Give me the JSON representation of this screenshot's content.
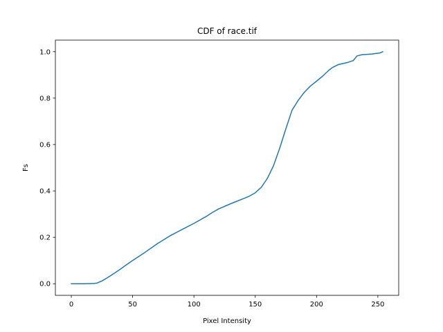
{
  "chart_data": {
    "type": "line",
    "title": "CDF of race.tif",
    "xlabel": "Pixel Intensity",
    "ylabel": "Fs",
    "xlim": [
      -13,
      267
    ],
    "ylim": [
      -0.05,
      1.05
    ],
    "xticks": [
      0,
      50,
      100,
      150,
      200,
      250
    ],
    "yticks": [
      0.0,
      0.2,
      0.4,
      0.6,
      0.8,
      1.0
    ],
    "xtick_labels": [
      "0",
      "50",
      "100",
      "150",
      "200",
      "250"
    ],
    "ytick_labels": [
      "0.0",
      "0.2",
      "0.4",
      "0.6",
      "0.8",
      "1.0"
    ],
    "grid": false,
    "series": [
      {
        "color": "#1f77b4",
        "x": [
          0,
          10,
          18,
          21,
          25,
          30,
          35,
          40,
          45,
          50,
          60,
          70,
          80,
          90,
          100,
          110,
          115,
          120,
          130,
          140,
          145,
          150,
          155,
          160,
          165,
          170,
          175,
          180,
          185,
          190,
          195,
          200,
          205,
          207,
          210,
          213,
          218,
          225,
          230,
          233,
          237,
          245,
          252,
          254
        ],
        "y": [
          0.0,
          0.0,
          0.001,
          0.003,
          0.012,
          0.028,
          0.045,
          0.063,
          0.082,
          0.1,
          0.135,
          0.172,
          0.205,
          0.233,
          0.26,
          0.29,
          0.307,
          0.322,
          0.345,
          0.366,
          0.377,
          0.392,
          0.416,
          0.455,
          0.51,
          0.585,
          0.668,
          0.748,
          0.79,
          0.825,
          0.852,
          0.873,
          0.895,
          0.905,
          0.92,
          0.932,
          0.945,
          0.953,
          0.962,
          0.982,
          0.987,
          0.99,
          0.995,
          1.0
        ]
      }
    ]
  }
}
